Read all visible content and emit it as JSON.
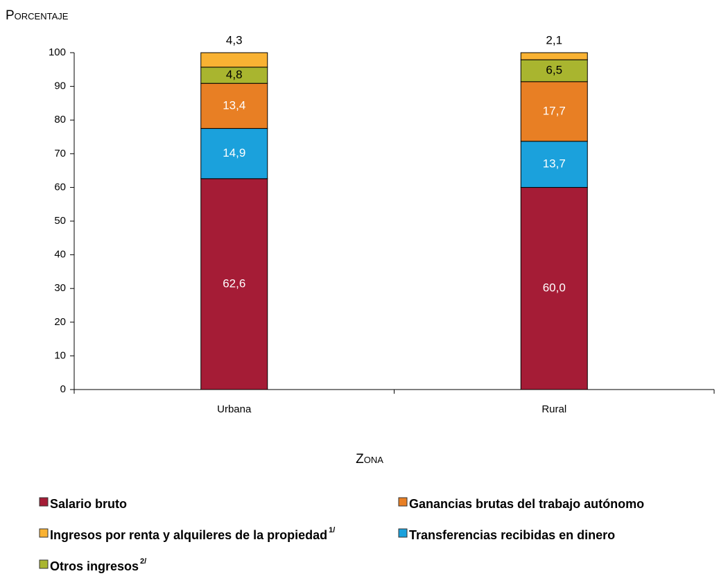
{
  "chart_data": {
    "type": "stacked_bar",
    "y_label": "Porcentaje",
    "x_label": "Zona",
    "categories": [
      "Urbana",
      "Rural"
    ],
    "series": [
      {
        "name": "Salario bruto",
        "color": "#a51c36",
        "label_color": "#ffffff",
        "values": [
          62.6,
          60.0
        ],
        "value_labels": [
          "62,6",
          "60,0"
        ]
      },
      {
        "name": "Transferencias recibidas en dinero",
        "color": "#1ba1dc",
        "label_color": "#ffffff",
        "values": [
          14.9,
          13.7
        ],
        "value_labels": [
          "14,9",
          "13,7"
        ]
      },
      {
        "name": "Ganancias brutas del trabajo autónomo",
        "color": "#e87f24",
        "label_color": "#ffffff",
        "values": [
          13.4,
          17.7
        ],
        "value_labels": [
          "13,4",
          "17,7"
        ]
      },
      {
        "name": "Otros ingresos",
        "name_superscript": "2/",
        "color": "#a9b52f",
        "label_color": "#000000",
        "values": [
          4.8,
          6.5
        ],
        "value_labels": [
          "4,8",
          "6,5"
        ]
      },
      {
        "name": "Ingresos por renta y alquileres de la propiedad",
        "name_superscript": "1/",
        "color": "#f9b233",
        "label_color": "#000000",
        "values": [
          4.3,
          2.1
        ],
        "value_labels": [
          "4,3",
          "2,1"
        ]
      }
    ],
    "ylim": [
      0,
      100
    ],
    "yticks": [
      0,
      10,
      20,
      30,
      40,
      50,
      60,
      70,
      80,
      90,
      100
    ],
    "grid": false
  }
}
